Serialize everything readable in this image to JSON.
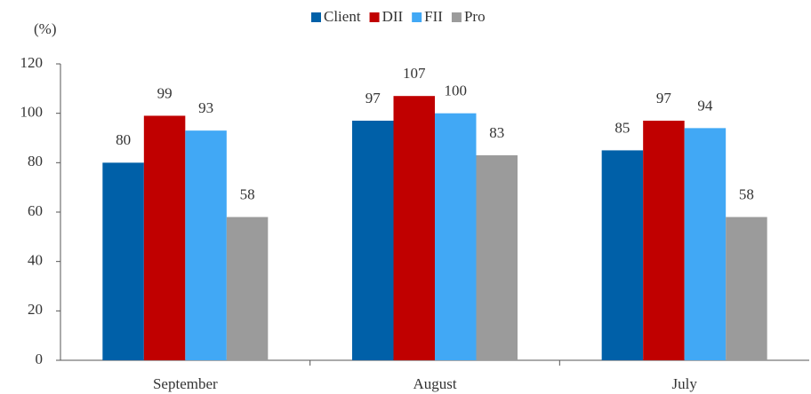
{
  "chart_data": {
    "type": "bar",
    "y_label": "(%)",
    "categories": [
      "September",
      "August",
      "July"
    ],
    "series": [
      {
        "name": "Client",
        "color": "#0060a8",
        "values": [
          80,
          97,
          85
        ]
      },
      {
        "name": "DII",
        "color": "#c00000",
        "values": [
          99,
          107,
          97
        ]
      },
      {
        "name": "FII",
        "color": "#41a8f5",
        "values": [
          93,
          100,
          94
        ]
      },
      {
        "name": "Pro",
        "color": "#9b9b9b",
        "values": [
          58,
          83,
          58
        ]
      }
    ],
    "ylim": [
      0,
      120
    ],
    "yticks": [
      0,
      20,
      40,
      60,
      80,
      100,
      120
    ],
    "grid": false,
    "legend": "top"
  }
}
